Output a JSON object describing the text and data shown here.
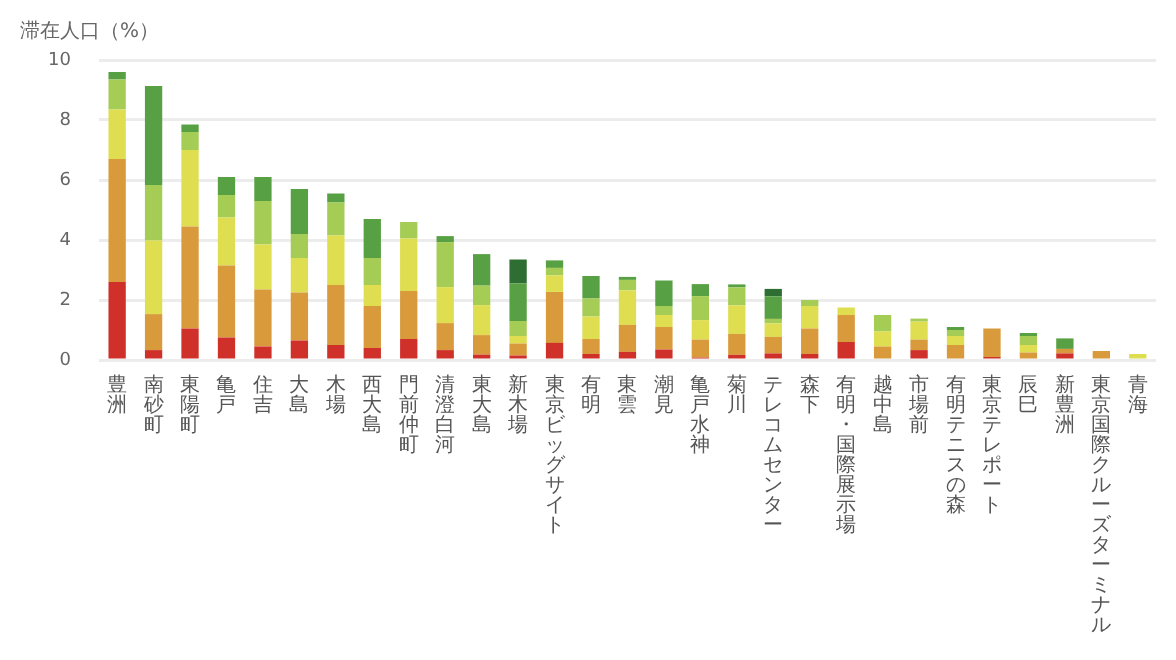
{
  "chart_data": {
    "type": "bar",
    "stacked": true,
    "ylabel": "滞在人口（%）",
    "categories": [
      "豊洲",
      "南砂町",
      "東陽町",
      "亀戸",
      "住吉",
      "大島",
      "木場",
      "西大島",
      "門前仲町",
      "清澄白河",
      "東大島",
      "新木場",
      "東京ビッグサイト",
      "有明",
      "東雲",
      "潮見",
      "亀戸水神",
      "菊川",
      "テレコムセンター",
      "森下",
      "有明・国際展示場",
      "越中島",
      "市場前",
      "有明テニスの森",
      "東京テレポート",
      "辰巳",
      "新豊洲",
      "東京国際クルーズターミナル",
      "青海"
    ],
    "series": [
      {
        "color": "#d0302a",
        "values": [
          2.6,
          0.33,
          1.05,
          0.75,
          0.45,
          0.65,
          0.5,
          0.4,
          0.7,
          0.33,
          0.18,
          0.15,
          0.57,
          0.2,
          0.27,
          0.35,
          0.08,
          0.17,
          0.22,
          0.2,
          0.6,
          0,
          0.33,
          0,
          0.1,
          0.05,
          0.22,
          0.05,
          0
        ]
      },
      {
        "color": "#d89a3a",
        "values": [
          4.1,
          1.2,
          3.4,
          2.4,
          1.9,
          1.6,
          2.0,
          1.4,
          1.6,
          0.9,
          0.65,
          0.4,
          1.7,
          0.5,
          0.9,
          0.75,
          0.6,
          0.7,
          0.55,
          0.85,
          0.9,
          0.45,
          0.35,
          0.5,
          0.95,
          0.2,
          0.15,
          0.25,
          0
        ]
      },
      {
        "color": "#dede50",
        "values": [
          1.65,
          2.45,
          2.55,
          1.6,
          1.5,
          1.15,
          1.65,
          0.7,
          1.75,
          1.2,
          1.0,
          0.25,
          0.55,
          0.75,
          1.15,
          0.4,
          0.65,
          0.95,
          0.45,
          0.75,
          0.25,
          0.5,
          0.6,
          0.3,
          0,
          0.25,
          0,
          0,
          0.2
        ]
      },
      {
        "color": "#a5cc55",
        "values": [
          1.0,
          1.85,
          0.6,
          0.75,
          1.45,
          0.8,
          1.1,
          0.9,
          0.55,
          1.5,
          0.65,
          0.5,
          0.25,
          0.6,
          0.35,
          0.3,
          0.8,
          0.6,
          0.15,
          0.2,
          0,
          0.55,
          0.1,
          0.2,
          0,
          0.3,
          0,
          0,
          0
        ]
      },
      {
        "color": "#58a044",
        "values": [
          0.25,
          3.3,
          0.25,
          0.6,
          0.8,
          1.5,
          0.3,
          1.3,
          0,
          0.2,
          1.05,
          1.25,
          0.25,
          0.75,
          0.1,
          0.85,
          0.4,
          0.1,
          0.75,
          0,
          0,
          0,
          0,
          0.1,
          0,
          0.1,
          0.35,
          0,
          0
        ]
      },
      {
        "color": "#2e6e32",
        "values": [
          0,
          0,
          0,
          0,
          0,
          0,
          0,
          0,
          0,
          0,
          0,
          0.8,
          0,
          0,
          0,
          0,
          0,
          0,
          0.25,
          0,
          0,
          0,
          0,
          0,
          0,
          0,
          0,
          0,
          0
        ]
      }
    ],
    "ylim": [
      0,
      10
    ],
    "yticks": [
      0,
      2,
      4,
      6,
      8,
      10
    ],
    "grid": "y",
    "legend": false
  }
}
